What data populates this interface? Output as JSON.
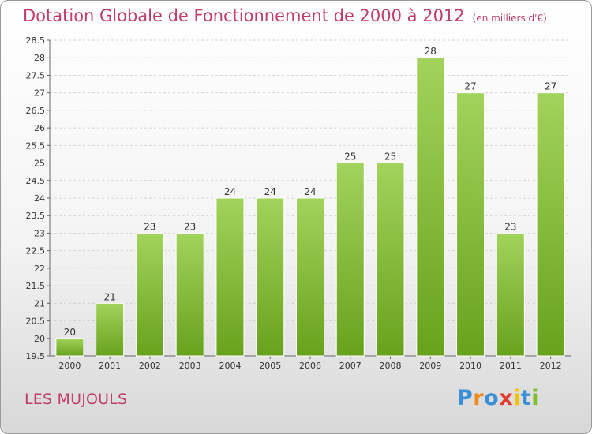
{
  "header": {
    "title": "Dotation Globale de Fonctionnement de 2000 à 2012",
    "subtitle": "(en milliers d'€)"
  },
  "footer": {
    "commune": "LES MUJOULS",
    "logo_text": "Proxiti"
  },
  "colors": {
    "title": "#c03d6a",
    "bar_top": "#a2d35c",
    "bar_bottom": "#68a21c"
  },
  "chart_data": {
    "type": "bar",
    "title": "Dotation Globale de Fonctionnement de 2000 à 2012",
    "subtitle": "(en milliers d'€)",
    "xlabel": "",
    "ylabel": "",
    "categories": [
      "2000",
      "2001",
      "2002",
      "2003",
      "2004",
      "2005",
      "2006",
      "2007",
      "2008",
      "2009",
      "2010",
      "2011",
      "2012"
    ],
    "values": [
      20,
      21,
      23,
      23,
      24,
      24,
      24,
      25,
      25,
      28,
      27,
      23,
      27
    ],
    "data_labels": [
      "20",
      "21",
      "23",
      "23",
      "24",
      "24",
      "24",
      "25",
      "25",
      "28",
      "27",
      "23",
      "27"
    ],
    "ylim": [
      19.5,
      28.5
    ],
    "yticks": [
      19.5,
      20,
      20.5,
      21,
      21.5,
      22,
      22.5,
      23,
      23.5,
      24,
      24.5,
      25,
      25.5,
      26,
      26.5,
      27,
      27.5,
      28,
      28.5
    ],
    "grid": true,
    "legend": "none"
  }
}
